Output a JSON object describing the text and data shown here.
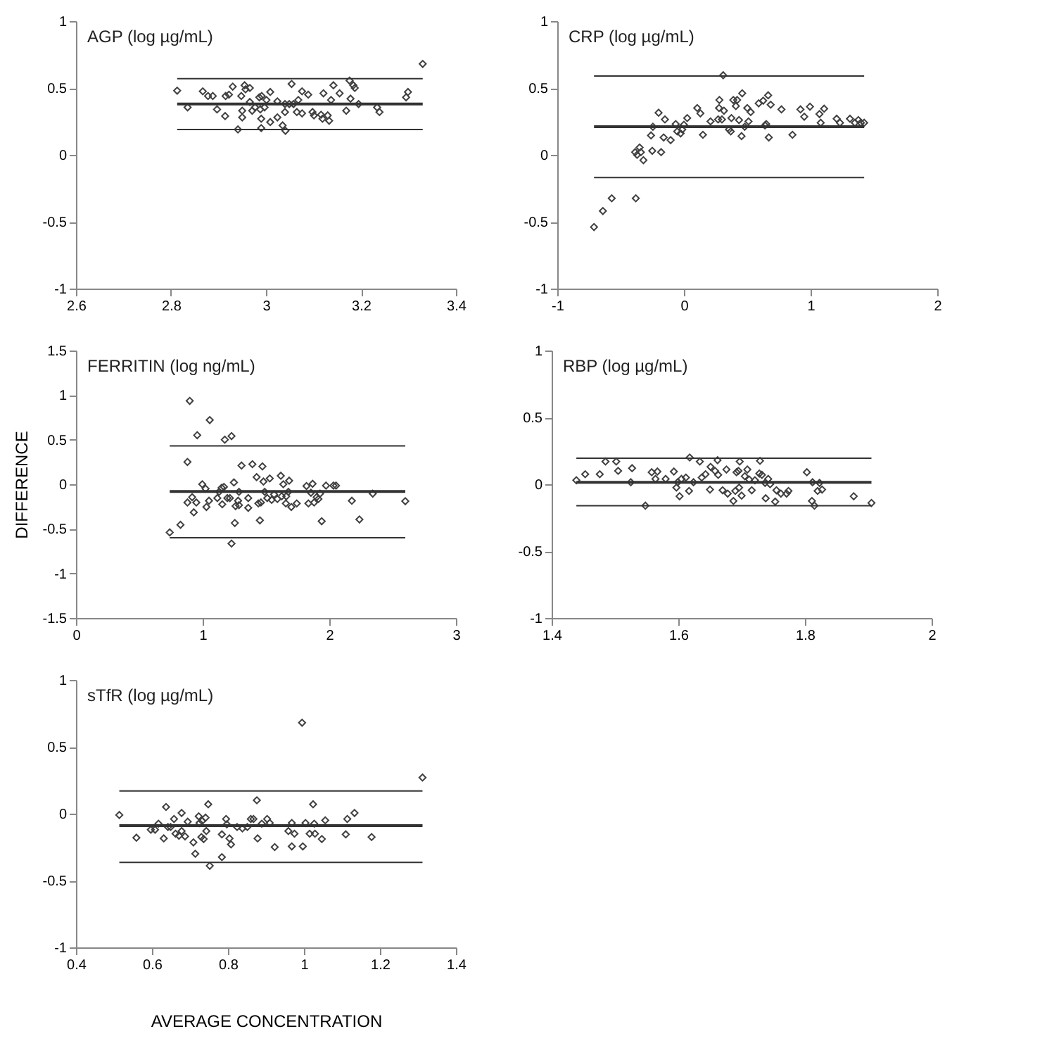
{
  "chart_data": [
    {
      "type": "scatter",
      "title": "AGP (log µg/mL)",
      "xlim": [
        2.6,
        3.4
      ],
      "xticks": [
        2.6,
        2.8,
        3,
        3.2,
        3.4
      ],
      "ylim": [
        -1,
        1
      ],
      "yticks": [
        -1,
        -0.5,
        0,
        0.5,
        1
      ],
      "grid": false,
      "marker": "diamond",
      "series": [
        {
          "color": "#404040",
          "x": [
            2.813,
            2.835,
            2.867,
            2.878,
            2.888,
            2.897,
            2.914,
            2.915,
            2.922,
            2.93,
            2.941,
            2.948,
            2.95,
            2.95,
            2.955,
            2.957,
            2.966,
            2.966,
            2.971,
            2.977,
            2.986,
            2.988,
            2.99,
            2.99,
            2.991,
            2.997,
            3.001,
            3.009,
            3.009,
            3.024,
            3.024,
            3.035,
            3.04,
            3.041,
            3.04,
            3.049,
            3.054,
            3.058,
            3.065,
            3.068,
            3.076,
            3.076,
            3.089,
            3.098,
            3.101,
            3.116,
            3.119,
            3.121,
            3.13,
            3.133,
            3.137,
            3.142,
            3.155,
            3.169,
            3.176,
            3.178,
            3.184,
            3.187,
            3.195,
            3.234,
            3.239,
            3.295,
            3.299,
            3.33
          ],
          "values": [
            0.48,
            0.355,
            0.475,
            0.44,
            0.44,
            0.34,
            0.29,
            0.44,
            0.45,
            0.51,
            0.19,
            0.44,
            0.33,
            0.28,
            0.52,
            0.49,
            0.5,
            0.395,
            0.33,
            0.355,
            0.43,
            0.34,
            0.2,
            0.27,
            0.44,
            0.355,
            0.41,
            0.47,
            0.245,
            0.28,
            0.4,
            0.22,
            0.38,
            0.18,
            0.32,
            0.38,
            0.53,
            0.38,
            0.32,
            0.41,
            0.475,
            0.31,
            0.45,
            0.32,
            0.295,
            0.3,
            0.27,
            0.46,
            0.295,
            0.255,
            0.41,
            0.52,
            0.46,
            0.33,
            0.555,
            0.42,
            0.52,
            0.5,
            0.38,
            0.355,
            0.32,
            0.43,
            0.47,
            0.68
          ]
        }
      ],
      "ref_lines": [
        {
          "axis": "y",
          "value": 0.57
        },
        {
          "axis": "y",
          "value": 0.38
        },
        {
          "axis": "y",
          "value": 0.19
        }
      ]
    },
    {
      "type": "scatter",
      "title": "CRP (log µg/mL)",
      "xlim": [
        -1,
        2
      ],
      "xticks": [
        -1,
        0,
        1,
        2
      ],
      "ylim": [
        -1,
        1
      ],
      "yticks": [
        -1,
        -0.5,
        0,
        0.5,
        1
      ],
      "grid": false,
      "marker": "diamond",
      "series": [
        {
          "color": "#404040",
          "x": [
            -0.71,
            -0.64,
            -0.57,
            -0.38,
            -0.385,
            -0.37,
            -0.35,
            -0.34,
            -0.32,
            -0.26,
            -0.25,
            -0.245,
            -0.2,
            -0.18,
            -0.15,
            -0.16,
            -0.105,
            -0.065,
            -0.053,
            -0.026,
            -0.013,
            0.0,
            0.026,
            0.105,
            0.13,
            0.15,
            0.21,
            0.27,
            0.277,
            0.28,
            0.3,
            0.31,
            0.316,
            0.356,
            0.37,
            0.375,
            0.39,
            0.41,
            0.42,
            0.435,
            0.455,
            0.46,
            0.48,
            0.5,
            0.51,
            0.527,
            0.59,
            0.626,
            0.64,
            0.65,
            0.665,
            0.67,
            0.685,
            0.77,
            0.857,
            0.92,
            0.95,
            0.995,
            1.07,
            1.08,
            1.107,
            1.206,
            1.232,
            1.311,
            1.35,
            1.377,
            1.397,
            1.423
          ],
          "values": [
            -0.54,
            -0.42,
            -0.325,
            -0.325,
            0.02,
            0.0,
            0.055,
            0.02,
            -0.04,
            0.145,
            0.03,
            0.21,
            0.315,
            0.02,
            0.265,
            0.13,
            0.11,
            0.23,
            0.175,
            0.16,
            0.19,
            0.225,
            0.275,
            0.35,
            0.31,
            0.15,
            0.25,
            0.265,
            0.35,
            0.41,
            0.265,
            0.595,
            0.33,
            0.19,
            0.175,
            0.275,
            0.41,
            0.365,
            0.41,
            0.26,
            0.14,
            0.46,
            0.21,
            0.35,
            0.25,
            0.32,
            0.385,
            0.405,
            0.22,
            0.23,
            0.445,
            0.13,
            0.375,
            0.34,
            0.15,
            0.34,
            0.285,
            0.36,
            0.305,
            0.24,
            0.345,
            0.27,
            0.24,
            0.27,
            0.24,
            0.26,
            0.24,
            0.24
          ]
        }
      ],
      "ref_lines": [
        {
          "axis": "y",
          "value": 0.59
        },
        {
          "axis": "y",
          "value": 0.21
        },
        {
          "axis": "y",
          "value": -0.17
        }
      ]
    },
    {
      "type": "scatter",
      "title": "FERRITIN (log ng/mL)",
      "ylabel": "DIFFERENCE",
      "xlim": [
        0,
        3
      ],
      "xticks": [
        0,
        1,
        2,
        3
      ],
      "ylim": [
        -1.5,
        1.5
      ],
      "yticks": [
        -1.5,
        -1,
        -0.5,
        0,
        0.5,
        1,
        1.5
      ],
      "grid": false,
      "marker": "diamond",
      "series": [
        {
          "color": "#404040",
          "x": [
            0.74,
            0.825,
            0.88,
            0.88,
            0.898,
            0.917,
            0.93,
            0.95,
            0.957,
            0.997,
            1.023,
            1.03,
            1.05,
            1.056,
            1.116,
            1.13,
            1.15,
            1.155,
            1.168,
            1.175,
            1.195,
            1.215,
            1.228,
            1.228,
            1.247,
            1.254,
            1.26,
            1.28,
            1.287,
            1.287,
            1.307,
            1.36,
            1.36,
            1.393,
            1.426,
            1.44,
            1.452,
            1.46,
            1.472,
            1.48,
            1.49,
            1.51,
            1.53,
            1.545,
            1.564,
            1.59,
            1.617,
            1.624,
            1.637,
            1.657,
            1.66,
            1.677,
            1.683,
            1.7,
            1.743,
            1.82,
            1.835,
            1.855,
            1.868,
            1.88,
            1.9,
            1.914,
            1.927,
            1.94,
            1.974,
            2.033,
            2.053,
            2.178,
            2.238,
            2.343,
            2.6
          ],
          "values": [
            -0.54,
            -0.455,
            0.25,
            -0.205,
            0.935,
            -0.145,
            -0.315,
            -0.205,
            0.55,
            0.0,
            -0.05,
            -0.255,
            -0.185,
            0.72,
            -0.155,
            -0.085,
            -0.04,
            -0.225,
            -0.03,
            0.5,
            -0.155,
            -0.155,
            0.54,
            -0.665,
            0.02,
            -0.435,
            -0.245,
            -0.185,
            -0.085,
            -0.235,
            0.21,
            -0.155,
            -0.265,
            0.225,
            0.08,
            -0.215,
            -0.405,
            -0.205,
            0.2,
            0.03,
            -0.085,
            -0.155,
            0.065,
            -0.175,
            -0.115,
            -0.165,
            0.095,
            -0.135,
            0.0,
            -0.215,
            -0.135,
            -0.085,
            0.04,
            -0.255,
            -0.215,
            -0.02,
            -0.215,
            -0.095,
            0.005,
            -0.205,
            -0.145,
            -0.165,
            -0.105,
            -0.415,
            -0.015,
            -0.015,
            -0.015,
            -0.185,
            -0.395,
            -0.105,
            -0.19
          ]
        }
      ],
      "ref_lines": [
        {
          "axis": "y",
          "value": 0.43
        },
        {
          "axis": "y",
          "value": -0.08
        },
        {
          "axis": "y",
          "value": -0.6
        }
      ]
    },
    {
      "type": "scatter",
      "title": "RBP (log µg/mL)",
      "xlim": [
        1.4,
        2
      ],
      "xticks": [
        1.4,
        1.6,
        1.8,
        2
      ],
      "ylim": [
        -1,
        1
      ],
      "yticks": [
        -1,
        -0.5,
        0,
        0.5,
        1
      ],
      "grid": false,
      "marker": "diamond",
      "series": [
        {
          "color": "#404040",
          "x": [
            1.439,
            1.453,
            1.476,
            1.485,
            1.502,
            1.505,
            1.525,
            1.527,
            1.548,
            1.558,
            1.567,
            1.564,
            1.58,
            1.593,
            1.597,
            1.599,
            1.602,
            1.605,
            1.612,
            1.617,
            1.618,
            1.624,
            1.634,
            1.637,
            1.643,
            1.65,
            1.651,
            1.658,
            1.662,
            1.663,
            1.67,
            1.676,
            1.678,
            1.687,
            1.69,
            1.692,
            1.695,
            1.696,
            1.697,
            1.7,
            1.705,
            1.709,
            1.712,
            1.716,
            1.721,
            1.728,
            1.729,
            1.732,
            1.737,
            1.738,
            1.742,
            1.745,
            1.753,
            1.755,
            1.762,
            1.771,
            1.774,
            1.803,
            1.811,
            1.812,
            1.815,
            1.82,
            1.823,
            1.827,
            1.877,
            1.905
          ],
          "values": [
            0.03,
            0.075,
            0.075,
            0.17,
            0.17,
            0.1,
            0.015,
            0.12,
            -0.16,
            0.09,
            0.095,
            0.04,
            0.04,
            0.095,
            -0.025,
            0.015,
            -0.09,
            0.04,
            0.05,
            -0.05,
            0.2,
            0.015,
            0.17,
            0.05,
            0.075,
            -0.04,
            0.13,
            0.1,
            0.18,
            0.07,
            -0.045,
            0.11,
            -0.07,
            -0.125,
            -0.05,
            0.09,
            0.1,
            -0.025,
            0.17,
            -0.085,
            0.06,
            0.11,
            0.035,
            -0.045,
            0.03,
            0.08,
            0.175,
            0.07,
            0.01,
            -0.105,
            0.04,
            0.0,
            -0.13,
            -0.045,
            -0.07,
            -0.07,
            -0.05,
            0.09,
            -0.125,
            0.015,
            -0.16,
            -0.05,
            0.01,
            -0.04,
            -0.09,
            -0.14
          ]
        }
      ],
      "ref_lines": [
        {
          "axis": "y",
          "value": 0.195
        },
        {
          "axis": "y",
          "value": 0.015
        },
        {
          "axis": "y",
          "value": -0.16
        }
      ]
    },
    {
      "type": "scatter",
      "title": "sTfR (log µg/mL)",
      "xlabel": "AVERAGE CONCENTRATION",
      "xlim": [
        0.4,
        1.4
      ],
      "xticks": [
        0.4,
        0.6,
        0.8,
        1,
        1.2,
        1.4
      ],
      "ylim": [
        -1,
        1
      ],
      "yticks": [
        -1,
        -0.5,
        0,
        0.5,
        1
      ],
      "grid": false,
      "marker": "diamond",
      "series": [
        {
          "color": "#404040",
          "x": [
            0.514,
            0.559,
            0.597,
            0.608,
            0.617,
            0.631,
            0.637,
            0.642,
            0.649,
            0.658,
            0.662,
            0.671,
            0.678,
            0.678,
            0.687,
            0.694,
            0.709,
            0.714,
            0.723,
            0.725,
            0.73,
            0.732,
            0.736,
            0.741,
            0.743,
            0.748,
            0.752,
            0.784,
            0.784,
            0.795,
            0.797,
            0.804,
            0.808,
            0.824,
            0.838,
            0.851,
            0.86,
            0.867,
            0.876,
            0.878,
            0.889,
            0.903,
            0.91,
            0.923,
            0.959,
            0.968,
            0.968,
            0.975,
            0.995,
            0.997,
            1.004,
            1.015,
            1.024,
            1.027,
            1.029,
            1.047,
            1.056,
            1.11,
            1.114,
            1.133,
            1.178,
            1.312
          ],
          "values": [
            -0.01,
            -0.18,
            -0.12,
            -0.12,
            -0.075,
            -0.185,
            0.05,
            -0.1,
            -0.1,
            -0.04,
            -0.15,
            -0.165,
            0.005,
            -0.13,
            -0.17,
            -0.06,
            -0.215,
            -0.3,
            -0.02,
            -0.07,
            -0.175,
            -0.055,
            -0.19,
            -0.03,
            -0.13,
            0.07,
            -0.39,
            -0.155,
            -0.325,
            -0.04,
            -0.08,
            -0.185,
            -0.23,
            -0.1,
            -0.11,
            -0.1,
            -0.04,
            -0.04,
            0.1,
            -0.185,
            -0.075,
            -0.04,
            -0.07,
            -0.25,
            -0.13,
            -0.07,
            -0.245,
            -0.15,
            0.68,
            -0.245,
            -0.07,
            -0.15,
            0.07,
            -0.075,
            -0.15,
            -0.19,
            -0.05,
            -0.155,
            -0.04,
            0.005,
            -0.175,
            0.27
          ]
        }
      ],
      "ref_lines": [
        {
          "axis": "y",
          "value": 0.17
        },
        {
          "axis": "y",
          "value": -0.09
        },
        {
          "axis": "y",
          "value": -0.365
        }
      ]
    }
  ]
}
